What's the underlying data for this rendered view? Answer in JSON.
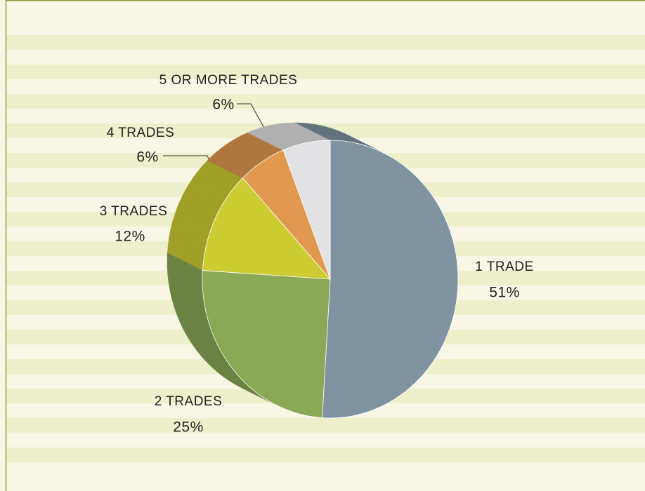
{
  "chart_data": {
    "type": "pie",
    "categories": [
      "1 TRADE",
      "2 TRADES",
      "3 TRADES",
      "4 TRADES",
      "5 OR MORE TRADES"
    ],
    "values": [
      51,
      25,
      12,
      6,
      6
    ],
    "value_labels": [
      "51%",
      "25%",
      "12%",
      "6%",
      "6%"
    ],
    "colors": [
      "#8093a0",
      "#8aa856",
      "#cdcc33",
      "#e0994e",
      "#e2e2e4"
    ]
  }
}
